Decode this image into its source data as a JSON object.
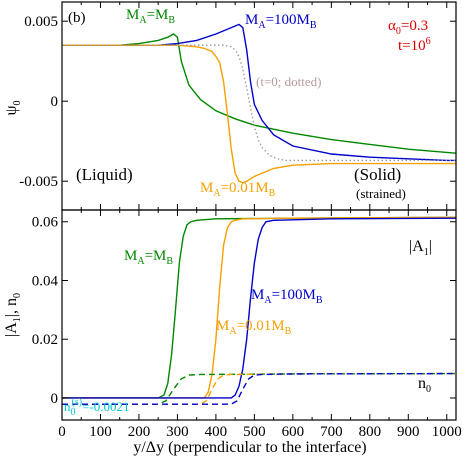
{
  "chart_data": [
    {
      "type": "line",
      "panel_label": "(b)",
      "ylabel": "ψ",
      "ylabel_subscript": "0",
      "xlim": [
        0,
        1024
      ],
      "ylim": [
        -0.0068,
        0.0062
      ],
      "xticks": [
        {
          "v": 0,
          "t": ""
        },
        {
          "v": 100,
          "t": ""
        },
        {
          "v": 200,
          "t": ""
        },
        {
          "v": 300,
          "t": ""
        },
        {
          "v": 400,
          "t": ""
        },
        {
          "v": 500,
          "t": ""
        },
        {
          "v": 600,
          "t": ""
        },
        {
          "v": 700,
          "t": ""
        },
        {
          "v": 800,
          "t": ""
        },
        {
          "v": 900,
          "t": ""
        },
        {
          "v": 1000,
          "t": ""
        }
      ],
      "yticks": [
        {
          "v": 0.005,
          "t": "0.005"
        },
        {
          "v": 0,
          "t": "0"
        },
        {
          "v": -0.005,
          "t": "-0.005"
        }
      ],
      "annotations": {
        "alpha": {
          "main": "α",
          "sub": "0",
          "rest": "=0.3"
        },
        "time": {
          "main": "t=10",
          "sup": "6"
        },
        "liquid": "(Liquid)",
        "solid": "(Solid)",
        "strained": "(strained)",
        "dotted_note": "(t=0; dotted)",
        "label_equal": {
          "a": "M",
          "as": "A",
          "b": "=M",
          "bs": "B"
        },
        "label_100": {
          "a": "M",
          "as": "A",
          "b": "=100M",
          "bs": "B"
        },
        "label_001": {
          "a": "M",
          "as": "A",
          "b": "=0.01M",
          "bs": "B"
        }
      },
      "series": [
        {
          "color": "#008800",
          "dash": "",
          "x": [
            0,
            150,
            200,
            250,
            275,
            290,
            300,
            310,
            330,
            360,
            400,
            450,
            500,
            600,
            700,
            800,
            900,
            1000,
            1024
          ],
          "y": [
            0.0035,
            0.0035,
            0.0036,
            0.0038,
            0.004,
            0.0042,
            0.004,
            0.0025,
            0.001,
            0.0001,
            -0.0006,
            -0.0011,
            -0.0015,
            -0.002,
            -0.0024,
            -0.0027,
            -0.003,
            -0.0032,
            -0.00325
          ]
        },
        {
          "color": "#0000cc",
          "dash": "",
          "x": [
            0,
            250,
            300,
            350,
            400,
            440,
            460,
            470,
            480,
            490,
            500,
            520,
            550,
            600,
            700,
            800,
            900,
            1000,
            1024
          ],
          "y": [
            0.0035,
            0.0035,
            0.0036,
            0.0038,
            0.0042,
            0.0046,
            0.0048,
            0.0046,
            0.0032,
            0.0012,
            -0.0002,
            -0.0012,
            -0.0021,
            -0.0028,
            -0.0033,
            -0.0035,
            -0.0036,
            -0.0037,
            -0.0037
          ]
        },
        {
          "color": "#f5a000",
          "dash": "",
          "x": [
            0,
            300,
            350,
            370,
            390,
            400,
            410,
            420,
            430,
            440,
            450,
            460,
            470,
            480,
            500,
            550,
            600,
            700,
            800,
            900,
            1000,
            1024
          ],
          "y": [
            0.0035,
            0.0035,
            0.0034,
            0.0033,
            0.0031,
            0.0028,
            0.0024,
            0.0012,
            -0.0008,
            -0.003,
            -0.0045,
            -0.005,
            -0.0051,
            -0.005,
            -0.0047,
            -0.0042,
            -0.004,
            -0.0039,
            -0.0039,
            -0.0039,
            -0.0039,
            -0.0039
          ]
        },
        {
          "color": "#999999",
          "dash": "1.5,2.5",
          "x": [
            0,
            420,
            440,
            450,
            460,
            470,
            480,
            490,
            500,
            510,
            520,
            540,
            560,
            580,
            600,
            700,
            800,
            1024
          ],
          "y": [
            0.0035,
            0.0035,
            0.0034,
            0.0032,
            0.0028,
            0.002,
            0.0008,
            -0.0004,
            -0.0016,
            -0.0024,
            -0.0029,
            -0.0034,
            -0.0036,
            -0.0037,
            -0.0037,
            -0.0037,
            -0.0037,
            -0.0037
          ]
        }
      ]
    },
    {
      "type": "line",
      "xlabel": "y/Δy (perpendicular to the interface)",
      "ylabel": "|A",
      "ylabel_subscript": "1",
      "ylabel_rest": "|, n",
      "ylabel_subscript2": "0",
      "xlim": [
        0,
        1024
      ],
      "ylim": [
        -0.0075,
        0.064
      ],
      "xticks": [
        {
          "v": 0,
          "t": "0"
        },
        {
          "v": 100,
          "t": "100"
        },
        {
          "v": 200,
          "t": "200"
        },
        {
          "v": 300,
          "t": "300"
        },
        {
          "v": 400,
          "t": "400"
        },
        {
          "v": 500,
          "t": "500"
        },
        {
          "v": 600,
          "t": "600"
        },
        {
          "v": 700,
          "t": "700"
        },
        {
          "v": 800,
          "t": "800"
        },
        {
          "v": 900,
          "t": "900"
        },
        {
          "v": 1000,
          "t": "1000"
        }
      ],
      "yticks": [
        {
          "v": 0,
          "t": "0"
        },
        {
          "v": 0.02,
          "t": "0.02"
        },
        {
          "v": 0.04,
          "t": "0.04"
        },
        {
          "v": 0.06,
          "t": "0.06"
        }
      ],
      "annotations": {
        "amp_label": {
          "a": "|A",
          "as": "1",
          "b": "|"
        },
        "n0_label": {
          "a": "n",
          "as": "0"
        },
        "n0_value": {
          "a": "n",
          "as": "0",
          "sup": "(s)",
          "b": "=-0.0021"
        },
        "label_equal": {
          "a": "M",
          "as": "A",
          "b": "=M",
          "bs": "B"
        },
        "label_100": {
          "a": "M",
          "as": "A",
          "b": "=100M",
          "bs": "B"
        },
        "label_001": {
          "a": "M",
          "as": "A",
          "b": "=0.01M",
          "bs": "B"
        }
      },
      "series": [
        {
          "color": "#008800",
          "dash": "",
          "x": [
            0,
            250,
            265,
            275,
            285,
            295,
            305,
            315,
            325,
            335,
            350,
            400,
            600,
            1024
          ],
          "y": [
            0,
            0,
            0.001,
            0.005,
            0.015,
            0.03,
            0.046,
            0.055,
            0.059,
            0.06,
            0.0605,
            0.061,
            0.0612,
            0.0615
          ]
        },
        {
          "color": "#f5a000",
          "dash": "",
          "x": [
            0,
            370,
            380,
            390,
            400,
            410,
            420,
            430,
            440,
            450,
            470,
            600,
            1024
          ],
          "y": [
            0,
            0,
            0.002,
            0.008,
            0.02,
            0.038,
            0.052,
            0.058,
            0.06,
            0.0605,
            0.061,
            0.0612,
            0.0615
          ]
        },
        {
          "color": "#0000cc",
          "dash": "",
          "x": [
            0,
            440,
            450,
            460,
            470,
            480,
            490,
            500,
            510,
            520,
            530,
            550,
            700,
            1024
          ],
          "y": [
            0,
            0,
            0.001,
            0.004,
            0.01,
            0.02,
            0.034,
            0.046,
            0.054,
            0.058,
            0.06,
            0.0605,
            0.061,
            0.0612
          ]
        },
        {
          "color": "#008800",
          "dash": "6,4",
          "x": [
            0,
            250,
            270,
            290,
            310,
            330,
            360,
            600,
            1024
          ],
          "y": [
            -0.0021,
            -0.0021,
            -0.001,
            0.003,
            0.0065,
            0.0078,
            0.008,
            0.0082,
            0.0083
          ]
        },
        {
          "color": "#f5a000",
          "dash": "6,4",
          "x": [
            0,
            360,
            375,
            390,
            405,
            420,
            440,
            600,
            1024
          ],
          "y": [
            -0.0021,
            -0.0021,
            -0.001,
            0.003,
            0.0065,
            0.0078,
            0.008,
            0.0082,
            0.0083
          ]
        },
        {
          "color": "#0000cc",
          "dash": "6,4",
          "x": [
            0,
            440,
            455,
            470,
            485,
            500,
            520,
            600,
            1024
          ],
          "y": [
            -0.0021,
            -0.0021,
            -0.001,
            0.003,
            0.0065,
            0.0078,
            0.008,
            0.0082,
            0.0083
          ]
        }
      ]
    }
  ]
}
